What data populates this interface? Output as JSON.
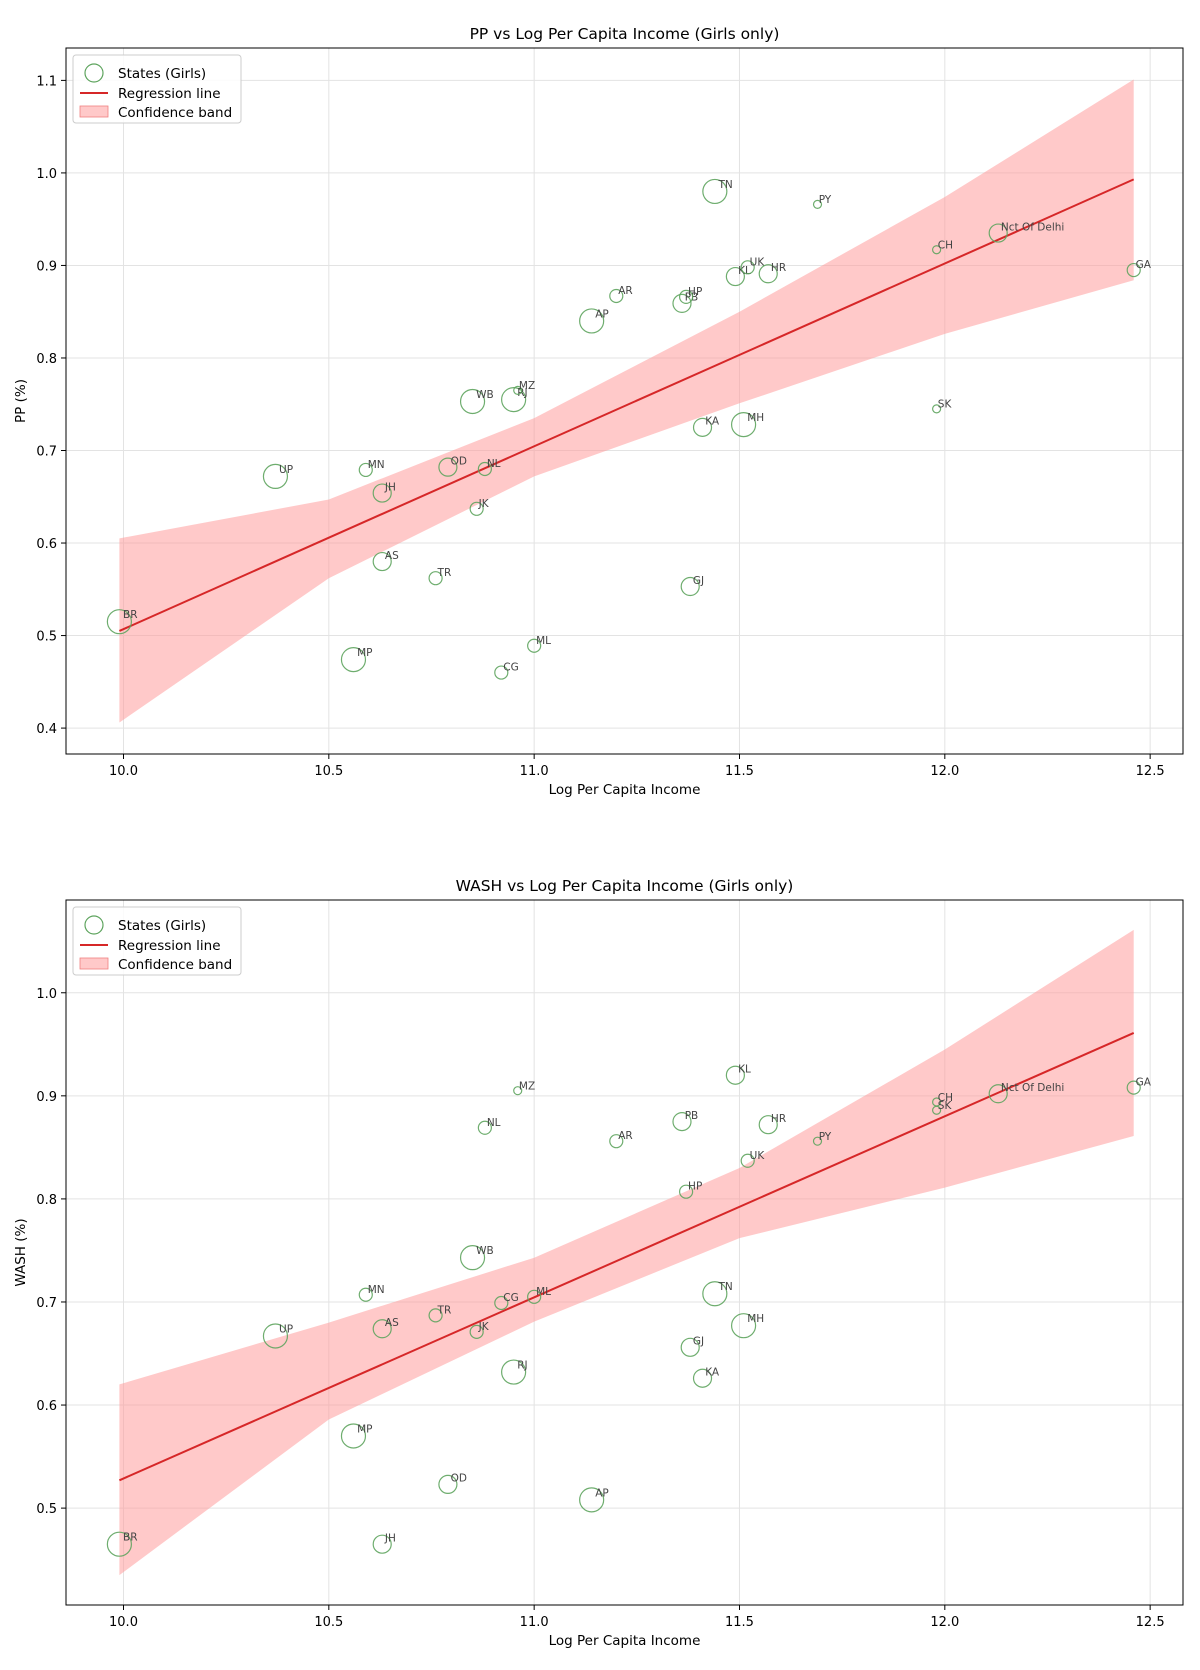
{
  "chart_data": [
    {
      "type": "scatter",
      "title": "PP vs Log Per Capita Income (Girls only)",
      "xlabel": "Log Per Capita Income",
      "ylabel": "PP (%)",
      "xlim": [
        9.86,
        12.58
      ],
      "ylim": [
        0.372,
        1.135
      ],
      "xticks": [
        10.0,
        10.5,
        11.0,
        11.5,
        12.0,
        12.5
      ],
      "yticks": [
        0.4,
        0.5,
        0.6,
        0.7,
        0.8,
        0.9,
        1.0,
        1.1
      ],
      "xtick_labels": [
        "10.0",
        "10.5",
        "11.0",
        "11.5",
        "12.0",
        "12.5"
      ],
      "ytick_labels": [
        "0.4",
        "0.5",
        "0.6",
        "0.7",
        "0.8",
        "0.9",
        "1.0",
        "1.1"
      ],
      "grid": true,
      "legend": {
        "position": "top-left",
        "entries": [
          "States (Girls)",
          "Regression line",
          "Confidence band"
        ]
      },
      "colors": {
        "points": "#5ea45e",
        "line": "#d62728",
        "band": "#ff9c9c"
      },
      "points": [
        {
          "label": "BR",
          "x": 9.99,
          "y": 0.515,
          "size": 3
        },
        {
          "label": "UP",
          "x": 10.37,
          "y": 0.672,
          "size": 3
        },
        {
          "label": "MP",
          "x": 10.56,
          "y": 0.474,
          "size": 3
        },
        {
          "label": "MN",
          "x": 10.59,
          "y": 0.679,
          "size": 1
        },
        {
          "label": "JH",
          "x": 10.63,
          "y": 0.654,
          "size": 2
        },
        {
          "label": "AS",
          "x": 10.63,
          "y": 0.58,
          "size": 2
        },
        {
          "label": "TR",
          "x": 10.76,
          "y": 0.562,
          "size": 1
        },
        {
          "label": "OD",
          "x": 10.79,
          "y": 0.682,
          "size": 2
        },
        {
          "label": "WB",
          "x": 10.85,
          "y": 0.753,
          "size": 3
        },
        {
          "label": "JK",
          "x": 10.86,
          "y": 0.637,
          "size": 1
        },
        {
          "label": "NL",
          "x": 10.88,
          "y": 0.68,
          "size": 1
        },
        {
          "label": "CG",
          "x": 10.92,
          "y": 0.46,
          "size": 1
        },
        {
          "label": "RJ",
          "x": 10.95,
          "y": 0.755,
          "size": 3
        },
        {
          "label": "MZ",
          "x": 10.96,
          "y": 0.765,
          "size": 0
        },
        {
          "label": "ML",
          "x": 11.0,
          "y": 0.489,
          "size": 1
        },
        {
          "label": "AP",
          "x": 11.14,
          "y": 0.84,
          "size": 3
        },
        {
          "label": "AR",
          "x": 11.2,
          "y": 0.867,
          "size": 1
        },
        {
          "label": "PB",
          "x": 11.36,
          "y": 0.859,
          "size": 2
        },
        {
          "label": "HP",
          "x": 11.37,
          "y": 0.866,
          "size": 1
        },
        {
          "label": "GJ",
          "x": 11.38,
          "y": 0.553,
          "size": 2
        },
        {
          "label": "KA",
          "x": 11.41,
          "y": 0.725,
          "size": 2
        },
        {
          "label": "TN",
          "x": 11.44,
          "y": 0.98,
          "size": 3
        },
        {
          "label": "KL",
          "x": 11.49,
          "y": 0.888,
          "size": 2
        },
        {
          "label": "MH",
          "x": 11.51,
          "y": 0.728,
          "size": 3
        },
        {
          "label": "UK",
          "x": 11.52,
          "y": 0.898,
          "size": 1
        },
        {
          "label": "HR",
          "x": 11.57,
          "y": 0.891,
          "size": 2
        },
        {
          "label": "PY",
          "x": 11.69,
          "y": 0.966,
          "size": 0
        },
        {
          "label": "CH",
          "x": 11.98,
          "y": 0.917,
          "size": 0
        },
        {
          "label": "SK",
          "x": 11.98,
          "y": 0.745,
          "size": 0
        },
        {
          "label": "Nct Of Delhi",
          "x": 12.13,
          "y": 0.935,
          "size": 2
        },
        {
          "label": "GA",
          "x": 12.46,
          "y": 0.895,
          "size": 1
        }
      ],
      "regression": {
        "x": [
          9.99,
          12.46
        ],
        "y": [
          0.505,
          0.993
        ]
      },
      "band": {
        "x": [
          9.99,
          10.5,
          11.0,
          11.5,
          12.0,
          12.46
        ],
        "lower": [
          0.406,
          0.562,
          0.672,
          0.751,
          0.826,
          0.884
        ],
        "upper": [
          0.605,
          0.647,
          0.735,
          0.85,
          0.974,
          1.101
        ]
      }
    },
    {
      "type": "scatter",
      "title": "WASH vs Log Per Capita Income (Girls only)",
      "xlabel": "Log Per Capita Income",
      "ylabel": "WASH (%)",
      "xlim": [
        9.86,
        12.58
      ],
      "ylim": [
        0.406,
        1.09
      ],
      "xticks": [
        10.0,
        10.5,
        11.0,
        11.5,
        12.0,
        12.5
      ],
      "yticks": [
        0.5,
        0.6,
        0.7,
        0.8,
        0.9,
        1.0
      ],
      "xtick_labels": [
        "10.0",
        "10.5",
        "11.0",
        "11.5",
        "12.0",
        "12.5"
      ],
      "ytick_labels": [
        "0.5",
        "0.6",
        "0.7",
        "0.8",
        "0.9",
        "1.0"
      ],
      "grid": true,
      "legend": {
        "position": "top-left",
        "entries": [
          "States (Girls)",
          "Regression line",
          "Confidence band"
        ]
      },
      "colors": {
        "points": "#5ea45e",
        "line": "#d62728",
        "band": "#ff9c9c"
      },
      "points": [
        {
          "label": "BR",
          "x": 9.99,
          "y": 0.465,
          "size": 3
        },
        {
          "label": "UP",
          "x": 10.37,
          "y": 0.667,
          "size": 3
        },
        {
          "label": "MP",
          "x": 10.56,
          "y": 0.57,
          "size": 3
        },
        {
          "label": "MN",
          "x": 10.59,
          "y": 0.707,
          "size": 1
        },
        {
          "label": "JH",
          "x": 10.63,
          "y": 0.465,
          "size": 2
        },
        {
          "label": "AS",
          "x": 10.63,
          "y": 0.674,
          "size": 2
        },
        {
          "label": "TR",
          "x": 10.76,
          "y": 0.687,
          "size": 1
        },
        {
          "label": "OD",
          "x": 10.79,
          "y": 0.523,
          "size": 2
        },
        {
          "label": "WB",
          "x": 10.85,
          "y": 0.743,
          "size": 3
        },
        {
          "label": "JK",
          "x": 10.86,
          "y": 0.671,
          "size": 1
        },
        {
          "label": "NL",
          "x": 10.88,
          "y": 0.869,
          "size": 1
        },
        {
          "label": "CG",
          "x": 10.92,
          "y": 0.699,
          "size": 1
        },
        {
          "label": "RJ",
          "x": 10.95,
          "y": 0.632,
          "size": 3
        },
        {
          "label": "MZ",
          "x": 10.96,
          "y": 0.905,
          "size": 0
        },
        {
          "label": "ML",
          "x": 11.0,
          "y": 0.705,
          "size": 1
        },
        {
          "label": "AP",
          "x": 11.14,
          "y": 0.508,
          "size": 3
        },
        {
          "label": "AR",
          "x": 11.2,
          "y": 0.856,
          "size": 1
        },
        {
          "label": "PB",
          "x": 11.36,
          "y": 0.875,
          "size": 2
        },
        {
          "label": "HP",
          "x": 11.37,
          "y": 0.807,
          "size": 1
        },
        {
          "label": "GJ",
          "x": 11.38,
          "y": 0.656,
          "size": 2
        },
        {
          "label": "KA",
          "x": 11.41,
          "y": 0.626,
          "size": 2
        },
        {
          "label": "TN",
          "x": 11.44,
          "y": 0.708,
          "size": 3
        },
        {
          "label": "KL",
          "x": 11.49,
          "y": 0.92,
          "size": 2
        },
        {
          "label": "MH",
          "x": 11.51,
          "y": 0.677,
          "size": 3
        },
        {
          "label": "UK",
          "x": 11.52,
          "y": 0.837,
          "size": 1
        },
        {
          "label": "HR",
          "x": 11.57,
          "y": 0.872,
          "size": 2
        },
        {
          "label": "PY",
          "x": 11.69,
          "y": 0.856,
          "size": 0
        },
        {
          "label": "CH",
          "x": 11.98,
          "y": 0.894,
          "size": 0
        },
        {
          "label": "SK",
          "x": 11.98,
          "y": 0.886,
          "size": 0
        },
        {
          "label": "Nct Of Delhi",
          "x": 12.13,
          "y": 0.902,
          "size": 2
        },
        {
          "label": "GA",
          "x": 12.46,
          "y": 0.908,
          "size": 1
        }
      ],
      "regression": {
        "x": [
          9.99,
          12.46
        ],
        "y": [
          0.527,
          0.961
        ]
      },
      "band": {
        "x": [
          9.99,
          10.5,
          11.0,
          11.5,
          12.0,
          12.46
        ],
        "lower": [
          0.435,
          0.586,
          0.681,
          0.762,
          0.811,
          0.861
        ],
        "upper": [
          0.62,
          0.68,
          0.743,
          0.83,
          0.945,
          1.061
        ]
      }
    }
  ]
}
